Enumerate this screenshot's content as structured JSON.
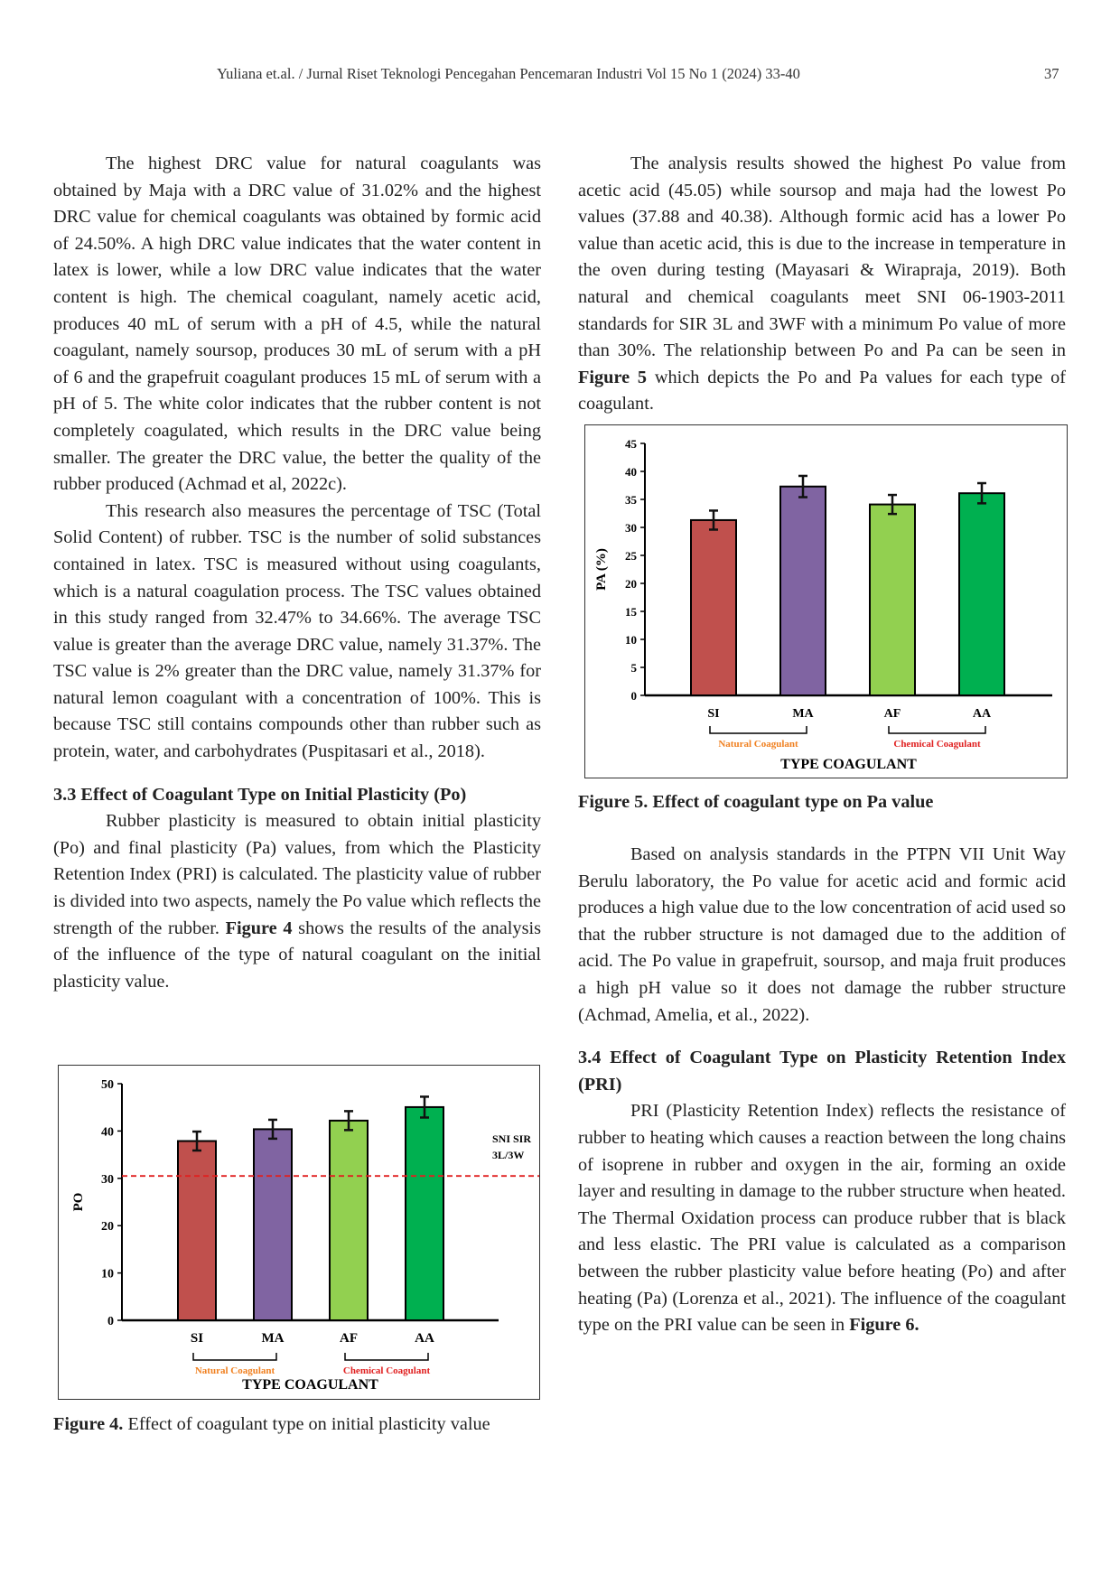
{
  "header": {
    "running_title": "Yuliana et.al. / Jurnal Riset Teknologi Pencegahan Pencemaran Industri Vol 15 No 1 (2024) 33-40",
    "page_number": "37"
  },
  "left": {
    "p1": "The highest DRC value for natural coagulants was obtained by Maja with a DRC value of 31.02% and the highest DRC value for chemical coagulants was obtained by formic acid of 24.50%. A high DRC value indicates that the water content in latex is lower, while a low DRC value indicates that the water content is high. The chemical coagulant, namely acetic acid, produces 40 mL of serum with a pH of 4.5, while the natural coagulant, namely soursop, produces 30 mL of serum with a pH of 6 and the grapefruit coagulant produces 15 mL of serum with a pH of 5. The white color indicates that the rubber content is not completely coagulated, which results in the DRC value being smaller. The greater the DRC value, the better the quality of the rubber produced (Achmad et al, 2022c).",
    "p2": "This research also measures the percentage of TSC (Total Solid Content) of rubber. TSC is the number of solid substances contained in latex. TSC is measured without using coagulants, which is a natural coagulation process. The TSC values obtained in this study ranged from 32.47% to 34.66%. The average TSC value is greater than the average DRC value, namely 31.37%. The TSC value is 2% greater than the DRC value, namely 31.37% for natural lemon coagulant with a concentration of 100%. This is because TSC still contains compounds other than rubber such as protein, water, and carbohydrates (Puspitasari et al., 2018).",
    "h33": "3.3 Effect of Coagulant Type on Initial Plasticity (Po)",
    "p3a": "Rubber plasticity is measured to obtain initial plasticity (Po) and final plasticity (Pa) values, from which the Plasticity Retention Index (PRI) is calculated. The plasticity value of rubber is divided into two aspects, namely the Po value which reflects the strength of the rubber. ",
    "p3b": "Figure 4",
    "p3c": " shows the results of the analysis of the influence of the type of natural coagulant on the initial plasticity value.",
    "fig4_caption_bold": "Figure 4.",
    "fig4_caption": " Effect of coagulant type on initial plasticity value"
  },
  "right": {
    "p1a": "The analysis results showed the highest Po value from acetic acid (45.05) while soursop and maja had the lowest Po values (37.88 and 40.38). Although formic acid has a lower Po value than acetic acid, this is due to the increase in temperature in the oven during testing (Mayasari & Wirapraja, 2019). Both natural and chemical coagulants meet SNI 06-1903-2011 standards for SIR 3L and 3WF with a minimum Po value of more than 30%. The relationship between Po and Pa can be seen in ",
    "p1b": "Figure 5",
    "p1c": " which depicts the Po and Pa values for each type of coagulant.",
    "fig5_caption": "Figure 5. Effect of coagulant type on Pa value",
    "p2": "Based on analysis standards in the PTPN VII Unit Way Berulu laboratory, the Po value for acetic acid and formic acid produces a high value due to the low concentration of acid used so that the rubber structure is not damaged due to the addition of acid. The Po value in grapefruit, soursop, and maja fruit produces a high pH value so it does not damage the rubber structure (Achmad, Amelia, et al., 2022).",
    "h34": "3.4 Effect of Coagulant Type on Plasticity Retention Index (PRI)",
    "p3a": "PRI (Plasticity Retention Index) reflects the resistance of rubber to heating which causes a reaction between the long chains of isoprene in rubber and oxygen in the air, forming an oxide layer and resulting in damage to the rubber structure when heated. The Thermal Oxidation process can produce rubber that is black and less elastic. The PRI value is calculated as a comparison between the rubber plasticity value before heating (Po) and after heating (Pa) (Lorenza et al., 2021). The influence of the coagulant type on the PRI value can be seen in ",
    "p3b": "Figure 6."
  },
  "chart_data": [
    {
      "type": "bar",
      "id": "fig4",
      "categories": [
        "SI",
        "MA",
        "AF",
        "AA"
      ],
      "values": [
        37.88,
        40.38,
        42.2,
        45.05
      ],
      "errors": [
        2,
        2,
        2,
        2.2
      ],
      "colors": [
        "#c0504d",
        "#8064a2",
        "#92d050",
        "#00b050"
      ],
      "ylabel": "PO",
      "xlabel": "TYPE COAGULANT",
      "ylim": [
        0,
        50
      ],
      "yticks": [
        0,
        10,
        20,
        30,
        40,
        50
      ],
      "reference_line": {
        "value": 30.5,
        "label_line1": "SNI SIR",
        "label_line2": "3L/3W",
        "color": "#e02020"
      },
      "groups": [
        {
          "label": "Natural Coagulant",
          "from": "SI",
          "to": "MA",
          "color": "#f08020"
        },
        {
          "label": "Chemical Coagulant",
          "from": "AF",
          "to": "AA",
          "color": "#e02020"
        }
      ]
    },
    {
      "type": "bar",
      "id": "fig5",
      "categories": [
        "SI",
        "MA",
        "AF",
        "AA"
      ],
      "values": [
        31.3,
        37.3,
        34.1,
        36.1
      ],
      "errors": [
        1.7,
        1.9,
        1.7,
        1.8
      ],
      "colors": [
        "#c0504d",
        "#8064a2",
        "#92d050",
        "#00b050"
      ],
      "ylabel": "PA (%)",
      "xlabel": "TYPE COAGULANT",
      "ylim": [
        0,
        45
      ],
      "yticks": [
        0,
        5,
        10,
        15,
        20,
        25,
        30,
        35,
        40,
        45
      ],
      "groups": [
        {
          "label": "Natural Coagulant",
          "from": "SI",
          "to": "MA",
          "color": "#f08020"
        },
        {
          "label": "Chemical Coagulant",
          "from": "AF",
          "to": "AA",
          "color": "#e02020"
        }
      ]
    }
  ]
}
